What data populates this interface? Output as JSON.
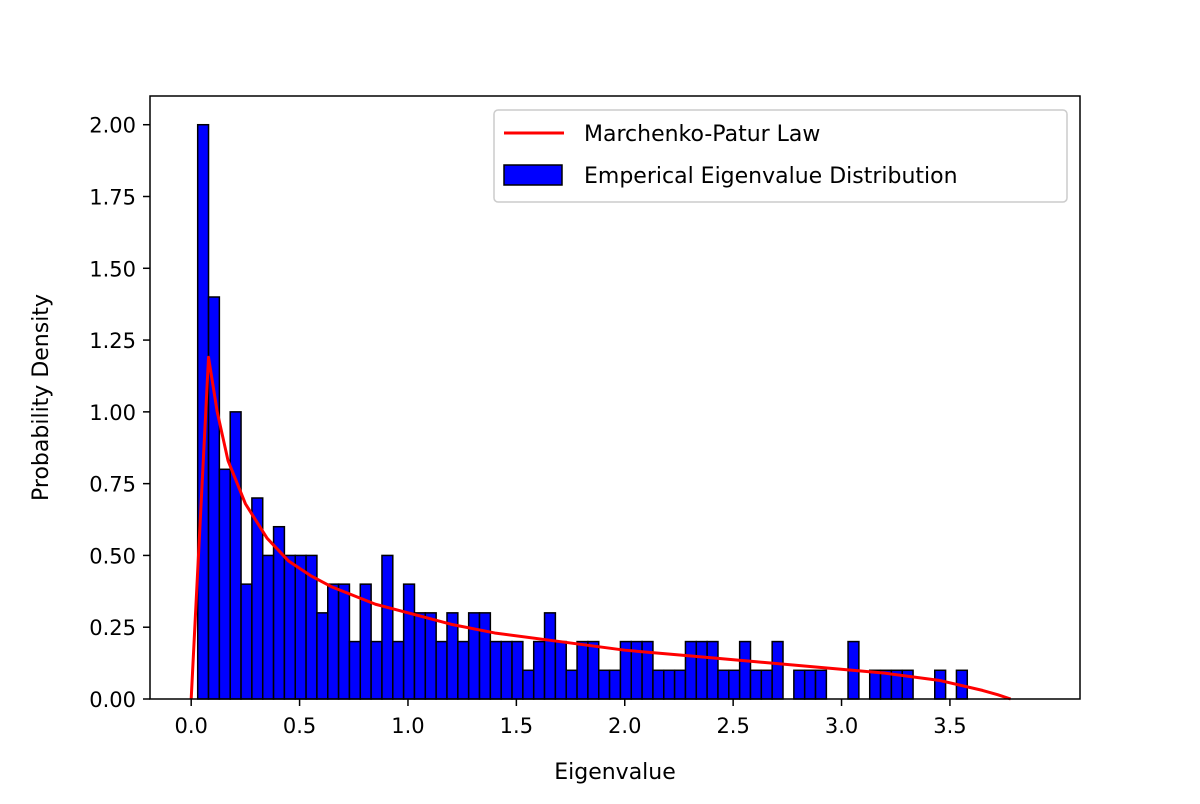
{
  "chart_data": {
    "type": "bar",
    "title": "",
    "xlabel": "Eigenvalue",
    "ylabel": "Probability Density",
    "xlim": [
      -0.19,
      4.1
    ],
    "ylim": [
      0,
      2.1
    ],
    "x_ticks": [
      0.0,
      0.5,
      1.0,
      1.5,
      2.0,
      2.5,
      3.0,
      3.5
    ],
    "x_tick_labels": [
      "0.0",
      "0.5",
      "1.0",
      "1.5",
      "2.0",
      "2.5",
      "3.0",
      "3.5"
    ],
    "y_ticks": [
      0.0,
      0.25,
      0.5,
      0.75,
      1.0,
      1.25,
      1.5,
      1.75,
      2.0
    ],
    "y_tick_labels": [
      "0.00",
      "0.25",
      "0.50",
      "0.75",
      "1.00",
      "1.25",
      "1.50",
      "1.75",
      "2.00"
    ],
    "grid": false,
    "legend": {
      "position": "top-right",
      "entries": [
        "Marchenko-Patur Law",
        "Emperical Eigenvalue Distribution"
      ]
    },
    "histogram": {
      "name": "Emperical Eigenvalue Distribution",
      "color": "#0000ff",
      "edgecolor": "#000000",
      "bin_start": 0.03,
      "bin_width": 0.05,
      "values": [
        2.0,
        1.4,
        0.8,
        1.0,
        0.4,
        0.7,
        0.5,
        0.6,
        0.5,
        0.5,
        0.5,
        0.3,
        0.4,
        0.4,
        0.2,
        0.4,
        0.2,
        0.5,
        0.2,
        0.4,
        0.3,
        0.3,
        0.2,
        0.3,
        0.2,
        0.3,
        0.3,
        0.2,
        0.2,
        0.2,
        0.1,
        0.2,
        0.3,
        0.2,
        0.1,
        0.2,
        0.2,
        0.1,
        0.1,
        0.2,
        0.2,
        0.2,
        0.1,
        0.1,
        0.1,
        0.2,
        0.2,
        0.2,
        0.1,
        0.1,
        0.2,
        0.1,
        0.1,
        0.2,
        0.0,
        0.1,
        0.1,
        0.1,
        0.0,
        0.0,
        0.2,
        0.0,
        0.1,
        0.1,
        0.1,
        0.1,
        0.0,
        0.0,
        0.1,
        0.0,
        0.1
      ]
    },
    "series": [
      {
        "name": "Marchenko-Patur Law",
        "type": "line",
        "color": "#ff0000",
        "x": [
          0.0,
          0.08,
          0.12,
          0.17,
          0.25,
          0.35,
          0.45,
          0.55,
          0.65,
          0.75,
          0.85,
          1.0,
          1.2,
          1.4,
          1.7,
          2.0,
          2.3,
          2.6,
          2.9,
          3.2,
          3.45,
          3.65,
          3.72,
          3.78
        ],
        "y": [
          0.0,
          1.19,
          1.0,
          0.83,
          0.68,
          0.56,
          0.48,
          0.43,
          0.39,
          0.36,
          0.33,
          0.3,
          0.26,
          0.23,
          0.2,
          0.17,
          0.15,
          0.13,
          0.11,
          0.09,
          0.065,
          0.03,
          0.015,
          0.0
        ]
      }
    ]
  }
}
